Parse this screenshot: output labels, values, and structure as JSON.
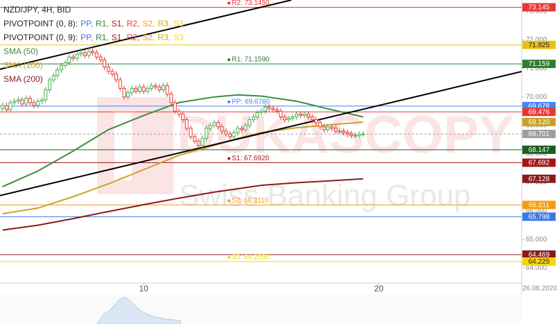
{
  "chart_data": {
    "type": "candlestick",
    "title": "NZD/JPY, 4H, BID",
    "x": [
      4,
      4.17,
      4.33,
      4.5,
      4.67,
      4.83,
      5,
      5.17,
      5.33,
      5.5,
      5.67,
      5.83,
      6,
      6.17,
      6.33,
      6.5,
      6.67,
      6.83,
      7,
      7.17,
      7.33,
      7.5,
      7.67,
      7.83,
      8,
      8.17,
      8.33,
      8.5,
      8.67,
      8.83,
      9,
      9.17,
      9.33,
      9.5,
      9.67,
      9.83,
      10,
      10.17,
      10.33,
      10.5,
      10.67,
      10.83,
      11,
      11.17,
      11.33,
      11.5,
      11.67,
      11.83,
      12,
      12.17,
      12.33,
      12.5,
      12.67,
      12.83,
      13,
      13.17,
      13.33,
      13.5,
      13.67,
      13.83,
      14,
      14.17,
      14.33,
      14.5,
      14.67,
      14.83,
      15,
      15.17,
      15.33,
      15.5,
      15.67,
      15.83,
      16,
      16.17,
      16.33,
      16.5,
      16.67,
      16.83,
      17,
      17.17,
      17.33,
      17.5,
      17.67,
      17.83,
      18,
      18.17,
      18.33,
      18.5,
      18.67,
      18.83,
      19,
      19.17,
      19.33
    ],
    "ohlc": [
      [
        69.6,
        69.8,
        69.5,
        69.7
      ],
      [
        69.7,
        69.8,
        69.45,
        69.55
      ],
      [
        69.55,
        69.9,
        69.45,
        69.8
      ],
      [
        69.8,
        69.95,
        69.7,
        69.85
      ],
      [
        69.85,
        70,
        69.75,
        69.9
      ],
      [
        69.9,
        70,
        69.65,
        69.75
      ],
      [
        69.75,
        70.05,
        69.65,
        69.95
      ],
      [
        69.95,
        70.05,
        69.7,
        69.8
      ],
      [
        69.8,
        69.9,
        69.6,
        69.7
      ],
      [
        69.7,
        69.95,
        69.6,
        69.85
      ],
      [
        69.85,
        70,
        69.75,
        69.9
      ],
      [
        69.9,
        70.35,
        69.8,
        70.25
      ],
      [
        70.25,
        70.7,
        70.15,
        70.6
      ],
      [
        70.6,
        70.85,
        70.5,
        70.75
      ],
      [
        70.75,
        71.05,
        70.65,
        70.95
      ],
      [
        70.95,
        71.2,
        70.85,
        71.1
      ],
      [
        71.1,
        71.3,
        71,
        71.2
      ],
      [
        71.2,
        71.5,
        71.1,
        71.4
      ],
      [
        71.4,
        71.5,
        71.25,
        71.35
      ],
      [
        71.35,
        71.6,
        71.25,
        71.5
      ],
      [
        71.5,
        71.7,
        71.4,
        71.55
      ],
      [
        71.55,
        71.65,
        71.35,
        71.45
      ],
      [
        71.45,
        71.75,
        71.35,
        71.6
      ],
      [
        71.6,
        71.7,
        71.45,
        71.55
      ],
      [
        71.55,
        71.65,
        71.3,
        71.4
      ],
      [
        71.4,
        71.5,
        71.2,
        71.3
      ],
      [
        71.3,
        71.4,
        70.95,
        71.05
      ],
      [
        71.05,
        71.15,
        70.8,
        70.9
      ],
      [
        70.9,
        71,
        70.7,
        70.8
      ],
      [
        70.8,
        70.9,
        70.5,
        70.6
      ],
      [
        70.6,
        70.7,
        70.2,
        70.3
      ],
      [
        70.3,
        70.4,
        69.9,
        70
      ],
      [
        70,
        70.25,
        69.9,
        70.15
      ],
      [
        70.15,
        70.4,
        70.05,
        70.3
      ],
      [
        70.3,
        70.4,
        70.1,
        70.2
      ],
      [
        70.2,
        70.45,
        70.1,
        70.35
      ],
      [
        70.35,
        70.45,
        70.1,
        70.2
      ],
      [
        70.2,
        70.4,
        70.1,
        70.3
      ],
      [
        70.3,
        70.5,
        70.2,
        70.4
      ],
      [
        70.4,
        70.5,
        70.25,
        70.35
      ],
      [
        70.35,
        70.45,
        70.15,
        70.25
      ],
      [
        70.25,
        70.5,
        70.15,
        70.4
      ],
      [
        70.4,
        70.5,
        70,
        70.1
      ],
      [
        70.1,
        70.2,
        69.7,
        69.8
      ],
      [
        69.8,
        69.9,
        69.4,
        69.5
      ],
      [
        69.5,
        69.6,
        69.3,
        69.4
      ],
      [
        69.4,
        69.5,
        69.1,
        69.2
      ],
      [
        69.2,
        69.3,
        68.8,
        68.9
      ],
      [
        68.9,
        69,
        68.5,
        68.6
      ],
      [
        68.6,
        68.7,
        68.35,
        68.45
      ],
      [
        68.45,
        68.55,
        68.2,
        68.3
      ],
      [
        68.3,
        68.65,
        68.2,
        68.55
      ],
      [
        68.55,
        69,
        68.45,
        68.9
      ],
      [
        68.9,
        69.1,
        68.8,
        69
      ],
      [
        69,
        69.2,
        68.9,
        69.1
      ],
      [
        69.1,
        69.2,
        68.85,
        68.95
      ],
      [
        68.95,
        69.05,
        68.7,
        68.8
      ],
      [
        68.8,
        68.9,
        68.6,
        68.7
      ],
      [
        68.7,
        68.8,
        68.5,
        68.6
      ],
      [
        68.6,
        68.85,
        68.5,
        68.75
      ],
      [
        68.75,
        69,
        68.65,
        68.9
      ],
      [
        68.9,
        69,
        68.75,
        68.85
      ],
      [
        68.85,
        69.1,
        68.75,
        69
      ],
      [
        69,
        69.3,
        68.9,
        69.2
      ],
      [
        69.2,
        69.4,
        69.1,
        69.3
      ],
      [
        69.3,
        69.55,
        69.2,
        69.45
      ],
      [
        69.45,
        69.6,
        69.35,
        69.5
      ],
      [
        69.5,
        69.75,
        69.4,
        69.65
      ],
      [
        69.65,
        69.75,
        69.5,
        69.6
      ],
      [
        69.6,
        69.7,
        69.45,
        69.55
      ],
      [
        69.55,
        69.65,
        69.4,
        69.5
      ],
      [
        69.5,
        69.6,
        69.2,
        69.3
      ],
      [
        69.3,
        69.4,
        69.1,
        69.2
      ],
      [
        69.2,
        69.35,
        69.1,
        69.25
      ],
      [
        69.25,
        69.4,
        69.15,
        69.3
      ],
      [
        69.3,
        69.5,
        69.2,
        69.4
      ],
      [
        69.4,
        69.5,
        69.25,
        69.35
      ],
      [
        69.35,
        69.5,
        69.25,
        69.4
      ],
      [
        69.4,
        69.5,
        69.2,
        69.3
      ],
      [
        69.3,
        69.4,
        69.1,
        69.2
      ],
      [
        69.2,
        69.3,
        69,
        69.1
      ],
      [
        69.1,
        69.2,
        68.85,
        68.95
      ],
      [
        68.95,
        69.05,
        68.75,
        68.85
      ],
      [
        68.85,
        69.05,
        68.75,
        68.95
      ],
      [
        68.95,
        69.05,
        68.8,
        68.9
      ],
      [
        68.9,
        69,
        68.7,
        68.8
      ],
      [
        68.8,
        68.9,
        68.7,
        68.8
      ],
      [
        68.8,
        68.9,
        68.65,
        68.75
      ],
      [
        68.75,
        68.85,
        68.6,
        68.7
      ],
      [
        68.7,
        68.8,
        68.55,
        68.65
      ],
      [
        68.65,
        68.75,
        68.55,
        68.65
      ],
      [
        68.65,
        68.8,
        68.55,
        68.7
      ],
      [
        68.7,
        68.8,
        68.6,
        68.701
      ]
    ],
    "up_color": "#4caf50",
    "down_color": "#e53935",
    "xlim": [
      3.89,
      26.07
    ],
    "xticks": [
      10,
      20
    ],
    "ylim": [
      63.47,
      73.4
    ],
    "yticks": [
      {
        "value": 64,
        "label": "64.000"
      },
      {
        "value": 65,
        "label": "65.000"
      },
      {
        "value": 66,
        "label": "66.000"
      },
      {
        "value": 67,
        "label": "67.000"
      },
      {
        "value": 68,
        "label": "68.000"
      },
      {
        "value": 69,
        "label": "69.000"
      },
      {
        "value": 70,
        "label": "70.000"
      },
      {
        "value": 71,
        "label": "71.000"
      },
      {
        "value": 72,
        "label": "72.000"
      },
      {
        "value": 73,
        "label": "73.000"
      }
    ],
    "date_label": "26.08.2020",
    "pivot_legends": [
      {
        "name": "PIVOTPOINT (0, 8):",
        "items": [
          {
            "text": "PP,",
            "color": "#3b78e7"
          },
          {
            "text": "R1,",
            "color": "#2e7d32"
          },
          {
            "text": "S1,",
            "color": "#a31515"
          },
          {
            "text": "R2,",
            "color": "#e53935"
          },
          {
            "text": "S2,",
            "color": "#f39c12"
          },
          {
            "text": "R3,",
            "color": "#d4b106"
          },
          {
            "text": "S3",
            "color": "#f5d50a"
          }
        ]
      },
      {
        "name": "PIVOTPOINT (0, 9):",
        "items": [
          {
            "text": "PP,",
            "color": "#3b78e7"
          },
          {
            "text": "R1,",
            "color": "#2e7d32"
          },
          {
            "text": "S1,",
            "color": "#a31515"
          },
          {
            "text": "R2,",
            "color": "#e53935"
          },
          {
            "text": "S2,",
            "color": "#f39c12"
          },
          {
            "text": "R3,",
            "color": "#d4b106"
          },
          {
            "text": "S3",
            "color": "#f5d50a"
          }
        ]
      }
    ],
    "indicators": [
      {
        "name": "SMA (50)",
        "color": "#3d8b3d",
        "x": [
          4,
          5.5,
          7,
          8.5,
          10,
          11.5,
          13,
          14,
          15,
          16.5,
          18,
          19.33
        ],
        "values": [
          66.85,
          67.4,
          68.1,
          68.85,
          69.35,
          69.8,
          70,
          70.07,
          70.03,
          69.85,
          69.55,
          69.3
        ]
      },
      {
        "name": "SMA (100)",
        "color": "#c9a227",
        "x": [
          4,
          5.5,
          7,
          8.5,
          10,
          11.5,
          13,
          14,
          15,
          16.5,
          18,
          19.33
        ],
        "values": [
          65.9,
          66.1,
          66.5,
          66.95,
          67.45,
          67.95,
          68.3,
          68.55,
          68.75,
          68.92,
          69.03,
          69.12
        ]
      },
      {
        "name": "SMA (200)",
        "color": "#8b1a1a",
        "x": [
          4,
          5.5,
          7,
          8.5,
          10,
          11.5,
          13,
          14,
          15,
          16.5,
          18,
          19.33
        ],
        "values": [
          65.33,
          65.5,
          65.73,
          65.98,
          66.22,
          66.45,
          66.66,
          66.78,
          66.9,
          66.99,
          67.06,
          67.128
        ]
      }
    ],
    "trendlines": [
      {
        "color": "#000000",
        "x": [
          3.89,
          26.07
        ],
        "values": [
          66.54,
          70.89
        ]
      },
      {
        "color": "#000000",
        "x": [
          3.89,
          16.28
        ],
        "values": [
          70.97,
          73.4
        ]
      }
    ],
    "levels": [
      {
        "value": 73.145,
        "label": "73.145",
        "color": "#e53935",
        "tag": "R2: 73.1450"
      },
      {
        "value": 71.825,
        "label": "71.825",
        "color": "#e8c21a"
      },
      {
        "value": 71.159,
        "label": "71.159",
        "color": "#2e7d32",
        "tag": "R1: 71.1590"
      },
      {
        "value": 69.678,
        "label": "69.678",
        "color": "#4285f4",
        "tag": "PP: 69.6780"
      },
      {
        "value": 69.476,
        "label": "69.476",
        "color": "#e53935"
      },
      {
        "value": 69.12,
        "label": "69.120",
        "color": "#c9a227",
        "line": false
      },
      {
        "value": 68.701,
        "label": "68.701",
        "color": "#9e9e9e",
        "dashed": true
      },
      {
        "value": 68.147,
        "label": "68.147",
        "color": "#1b5e20"
      },
      {
        "value": 67.692,
        "label": "67.692",
        "color": "#a31515",
        "tag": "S1: 67.6920"
      },
      {
        "value": 67.128,
        "label": "67.128",
        "color": "#8b1a1a",
        "line": false
      },
      {
        "value": 66.211,
        "label": "66.211",
        "color": "#f39c12",
        "tag": "S2: 66.2110"
      },
      {
        "value": 65.798,
        "label": "65.798",
        "color": "#3b78e7"
      },
      {
        "value": 64.469,
        "label": "64.469",
        "color": "#8b1a1a"
      },
      {
        "value": 64.225,
        "label": "64.225",
        "color": "#f5d50a",
        "tag": "S3: 64.2250"
      }
    ],
    "watermark": {
      "brand": "DUKASCOPY",
      "tagline": "Swiss Banking Group"
    }
  }
}
